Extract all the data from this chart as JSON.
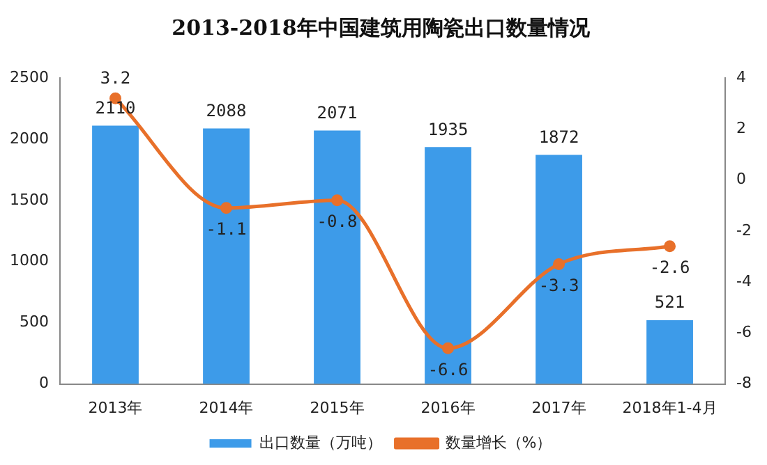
{
  "chart_data": {
    "type": "bar",
    "title": "2013-2018年中国建筑用陶瓷出口数量情况",
    "categories": [
      "2013年",
      "2014年",
      "2015年",
      "2016年",
      "2017年",
      "2018年1-4月"
    ],
    "series": [
      {
        "name": "出口数量（万吨）",
        "color": "#3d9be9",
        "values": [
          2110,
          2088,
          2071,
          1935,
          1872,
          521
        ]
      },
      {
        "name": "数量增长（%）",
        "type": "line",
        "axis": "y2",
        "color": "#e8702a",
        "values": [
          3.2,
          -1.1,
          -0.8,
          -6.6,
          -3.3,
          -2.6
        ]
      }
    ],
    "ylim": [
      0,
      2500
    ],
    "yticks": [
      0,
      500,
      1000,
      1500,
      2000,
      2500
    ],
    "y2lim": [
      -8,
      4
    ],
    "y2ticks": [
      -8,
      -6,
      -4,
      -2,
      0,
      2,
      4
    ],
    "data_labels": true,
    "grid": false,
    "legend": "bottom",
    "marker": "circle",
    "line_style": "solid"
  }
}
